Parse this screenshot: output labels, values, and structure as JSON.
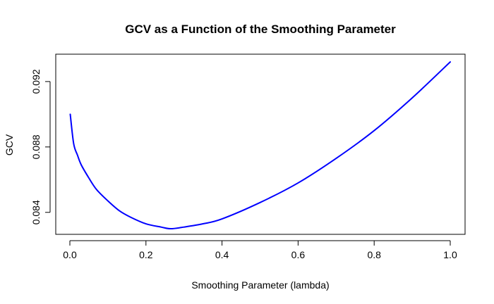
{
  "chart_data": {
    "type": "line",
    "title": "GCV as a Function of the Smoothing Parameter",
    "xlabel": "Smoothing Parameter (lambda)",
    "ylabel": "GCV",
    "xlim": [
      0.0,
      1.0
    ],
    "ylim": [
      0.0826,
      0.0934
    ],
    "xticks": [
      {
        "value": 0.0,
        "label": "0.0"
      },
      {
        "value": 0.2,
        "label": "0.2"
      },
      {
        "value": 0.4,
        "label": "0.4"
      },
      {
        "value": 0.6,
        "label": "0.6"
      },
      {
        "value": 0.8,
        "label": "0.8"
      },
      {
        "value": 1.0,
        "label": "1.0"
      }
    ],
    "yticks": [
      {
        "value": 0.084,
        "label": "0.084"
      },
      {
        "value": 0.088,
        "label": "0.088"
      },
      {
        "value": 0.092,
        "label": "0.092"
      }
    ],
    "grid": false,
    "legend": "none",
    "series": [
      {
        "color": "#0000ff",
        "x": [
          0.001,
          0.01,
          0.02,
          0.03,
          0.05,
          0.07,
          0.1,
          0.13,
          0.16,
          0.2,
          0.24,
          0.265,
          0.3,
          0.35,
          0.4,
          0.5,
          0.6,
          0.7,
          0.8,
          0.9,
          1.0
        ],
        "y": [
          0.09,
          0.0882,
          0.0875,
          0.0869,
          0.0861,
          0.0854,
          0.0847,
          0.0841,
          0.0837,
          0.0833,
          0.0831,
          0.083,
          0.0831,
          0.0833,
          0.0836,
          0.0846,
          0.0858,
          0.0873,
          0.089,
          0.091,
          0.0932
        ]
      }
    ]
  }
}
